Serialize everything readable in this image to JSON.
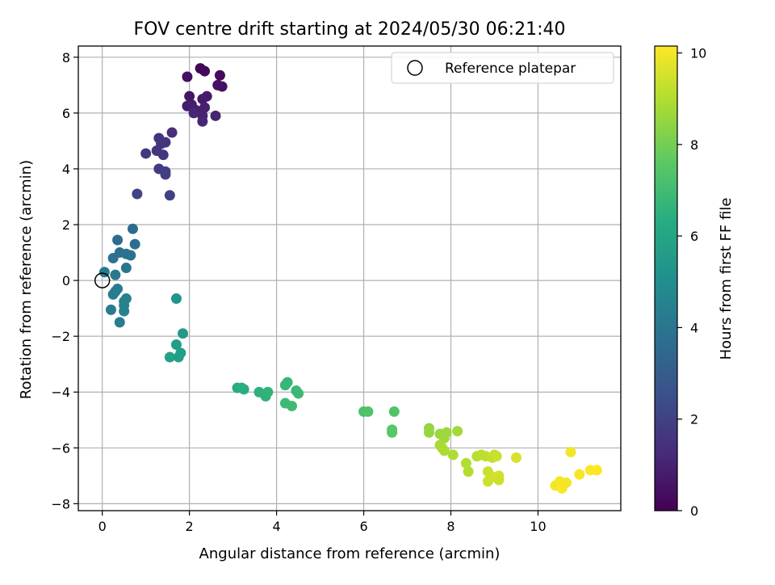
{
  "chart_data": {
    "type": "scatter",
    "title": "FOV centre drift starting at 2024/05/30 06:21:40",
    "xlabel": "Angular distance from reference (arcmin)",
    "ylabel": "Rotation from reference (arcmin)",
    "xlim": [
      -0.55,
      11.9
    ],
    "ylim": [
      -8.25,
      8.4
    ],
    "xticks": [
      0,
      2,
      4,
      6,
      8,
      10
    ],
    "xtick_labels": [
      "0",
      "2",
      "4",
      "6",
      "8",
      "10"
    ],
    "yticks": [
      -8,
      -6,
      -4,
      -2,
      0,
      2,
      4,
      6,
      8
    ],
    "ytick_labels": [
      "−8",
      "−6",
      "−4",
      "−2",
      "0",
      "2",
      "4",
      "6",
      "8"
    ],
    "grid": true,
    "legend": {
      "placement": "top-right",
      "entries": [
        "Reference platepar"
      ]
    },
    "reference_marker": {
      "x": 0,
      "y": 0,
      "label": "Reference platepar"
    },
    "colorbar": {
      "label": "Hours from first FF file",
      "range": [
        0,
        10.15
      ],
      "ticks": [
        0,
        2,
        4,
        6,
        8,
        10
      ],
      "tick_labels": [
        "0",
        "2",
        "4",
        "6",
        "8",
        "10"
      ],
      "colormap": "viridis"
    },
    "points": [
      [
        2.25,
        7.6,
        0.15
      ],
      [
        2.35,
        7.5,
        0.2
      ],
      [
        2.7,
        7.35,
        0.3
      ],
      [
        2.75,
        6.95,
        0.45
      ],
      [
        1.95,
        7.3,
        0.4
      ],
      [
        2.65,
        7.0,
        0.5
      ],
      [
        2.0,
        6.6,
        0.6
      ],
      [
        2.3,
        6.5,
        0.7
      ],
      [
        2.4,
        6.6,
        0.75
      ],
      [
        1.95,
        6.25,
        0.8
      ],
      [
        2.05,
        6.3,
        0.85
      ],
      [
        2.15,
        6.1,
        0.9
      ],
      [
        2.35,
        6.2,
        0.95
      ],
      [
        2.3,
        5.9,
        1.0
      ],
      [
        2.6,
        5.9,
        1.05
      ],
      [
        2.3,
        5.7,
        1.1
      ],
      [
        2.1,
        6.0,
        1.15
      ],
      [
        1.6,
        5.3,
        1.4
      ],
      [
        1.3,
        5.1,
        1.5
      ],
      [
        1.45,
        4.95,
        1.55
      ],
      [
        1.25,
        4.65,
        1.6
      ],
      [
        1.4,
        4.5,
        1.65
      ],
      [
        1.0,
        4.55,
        1.75
      ],
      [
        1.3,
        4.0,
        1.8
      ],
      [
        1.45,
        3.9,
        1.85
      ],
      [
        1.45,
        3.8,
        1.9
      ],
      [
        0.8,
        3.1,
        2.05
      ],
      [
        1.55,
        3.05,
        2.0
      ],
      [
        1.35,
        4.9,
        1.6
      ],
      [
        0.7,
        1.85,
        3.6
      ],
      [
        0.75,
        1.3,
        3.7
      ],
      [
        0.35,
        1.45,
        3.65
      ],
      [
        0.25,
        0.8,
        3.8
      ],
      [
        0.4,
        1.0,
        3.75
      ],
      [
        0.55,
        0.95,
        3.9
      ],
      [
        0.65,
        0.9,
        3.85
      ],
      [
        0.55,
        0.45,
        4.0
      ],
      [
        0.05,
        0.3,
        4.1
      ],
      [
        0.3,
        0.2,
        4.15
      ],
      [
        0.35,
        -0.3,
        4.2
      ],
      [
        0.25,
        -0.5,
        4.3
      ],
      [
        0.3,
        -0.4,
        4.25
      ],
      [
        0.5,
        -0.75,
        4.4
      ],
      [
        0.55,
        -0.65,
        4.45
      ],
      [
        0.5,
        -1.1,
        4.5
      ],
      [
        0.2,
        -1.05,
        4.2
      ],
      [
        0.4,
        -1.5,
        4.3
      ],
      [
        0.5,
        -0.9,
        4.55
      ],
      [
        1.7,
        -0.65,
        5.3
      ],
      [
        1.85,
        -1.9,
        5.5
      ],
      [
        1.7,
        -2.3,
        5.6
      ],
      [
        1.8,
        -2.6,
        5.7
      ],
      [
        1.55,
        -2.75,
        5.8
      ],
      [
        1.75,
        -2.75,
        5.75
      ],
      [
        3.1,
        -3.85,
        6.3
      ],
      [
        3.25,
        -3.9,
        6.35
      ],
      [
        3.2,
        -3.85,
        6.4
      ],
      [
        3.6,
        -4.0,
        6.5
      ],
      [
        3.75,
        -4.15,
        6.55
      ],
      [
        3.8,
        -4.0,
        6.6
      ],
      [
        4.2,
        -3.75,
        6.7
      ],
      [
        4.25,
        -3.65,
        6.75
      ],
      [
        4.45,
        -3.95,
        6.8
      ],
      [
        4.5,
        -4.05,
        6.85
      ],
      [
        4.2,
        -4.4,
        6.9
      ],
      [
        4.35,
        -4.5,
        6.95
      ],
      [
        6.0,
        -4.7,
        7.3
      ],
      [
        6.1,
        -4.7,
        7.35
      ],
      [
        6.7,
        -4.7,
        7.4
      ],
      [
        6.65,
        -5.35,
        7.45
      ],
      [
        6.65,
        -5.45,
        7.5
      ],
      [
        7.5,
        -5.3,
        8.5
      ],
      [
        7.5,
        -5.45,
        8.55
      ],
      [
        7.75,
        -5.5,
        8.6
      ],
      [
        7.9,
        -5.45,
        8.65
      ],
      [
        7.85,
        -5.65,
        8.7
      ],
      [
        8.15,
        -5.4,
        8.75
      ],
      [
        7.8,
        -6.0,
        8.8
      ],
      [
        7.75,
        -5.9,
        8.85
      ],
      [
        7.85,
        -6.1,
        8.9
      ],
      [
        8.05,
        -6.25,
        8.95
      ],
      [
        8.35,
        -6.55,
        9.0
      ],
      [
        8.4,
        -6.85,
        9.05
      ],
      [
        8.6,
        -6.3,
        9.1
      ],
      [
        8.7,
        -6.25,
        9.15
      ],
      [
        8.8,
        -6.3,
        9.2
      ],
      [
        8.95,
        -6.35,
        9.25
      ],
      [
        9.0,
        -6.25,
        9.3
      ],
      [
        8.85,
        -6.85,
        9.35
      ],
      [
        8.85,
        -7.2,
        9.4
      ],
      [
        9.0,
        -7.05,
        9.45
      ],
      [
        9.1,
        -7.0,
        9.5
      ],
      [
        9.1,
        -7.15,
        9.4
      ],
      [
        9.5,
        -6.35,
        9.55
      ],
      [
        9.05,
        -6.3,
        9.35
      ],
      [
        10.4,
        -7.35,
        10.0
      ],
      [
        10.5,
        -7.2,
        10.05
      ],
      [
        10.55,
        -7.45,
        10.1
      ],
      [
        10.6,
        -7.3,
        10.05
      ],
      [
        10.65,
        -7.25,
        10.0
      ],
      [
        10.75,
        -6.15,
        10.0
      ],
      [
        10.95,
        -6.95,
        10.05
      ],
      [
        11.2,
        -6.8,
        10.1
      ],
      [
        11.35,
        -6.8,
        10.15
      ]
    ]
  }
}
